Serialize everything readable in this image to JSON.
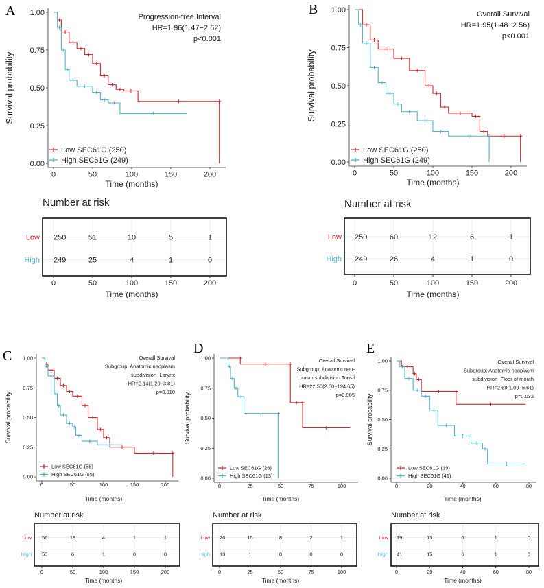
{
  "colors": {
    "low": "#d7262b",
    "high": "#4fb3c9"
  },
  "risk_title": "Number at risk",
  "chart_data": [
    {
      "panel": "A",
      "type": "line",
      "title_lines": [
        "Progression-free Interval",
        "HR=1.96(1.47−2.62)",
        "p<0.001"
      ],
      "xlabel": "Time (months)",
      "ylabel": "Survival probability",
      "xticks": [
        0,
        50,
        100,
        150,
        200
      ],
      "yticks": [
        "0.00",
        "0.25",
        "0.50",
        "0.75",
        "1.00"
      ],
      "xlim": [
        0,
        215
      ],
      "ylim": [
        0,
        1
      ],
      "series": [
        {
          "name": "Low SEC61G (250)",
          "group": "Low",
          "points": [
            [
              0,
              1
            ],
            [
              5,
              0.95
            ],
            [
              10,
              0.87
            ],
            [
              20,
              0.8
            ],
            [
              30,
              0.76
            ],
            [
              40,
              0.72
            ],
            [
              50,
              0.66
            ],
            [
              60,
              0.58
            ],
            [
              70,
              0.52
            ],
            [
              80,
              0.49
            ],
            [
              90,
              0.48
            ],
            [
              108,
              0.41
            ],
            [
              212,
              0.41
            ],
            [
              212,
              0
            ]
          ]
        },
        {
          "name": "High SEC61G (249)",
          "group": "High",
          "points": [
            [
              0,
              1
            ],
            [
              5,
              0.9
            ],
            [
              10,
              0.75
            ],
            [
              15,
              0.62
            ],
            [
              20,
              0.55
            ],
            [
              30,
              0.51
            ],
            [
              50,
              0.47
            ],
            [
              60,
              0.42
            ],
            [
              70,
              0.4
            ],
            [
              85,
              0.33
            ],
            [
              170,
              0.33
            ]
          ]
        }
      ],
      "risk": {
        "times": [
          0,
          50,
          100,
          150,
          200
        ],
        "Low": [
          "250",
          "51",
          "10",
          "5",
          "1"
        ],
        "High": [
          "249",
          "25",
          "4",
          "1",
          "0"
        ]
      }
    },
    {
      "panel": "B",
      "type": "line",
      "title_lines": [
        "Overall Survival",
        "HR=1.95(1.48−2.56)",
        "p<0.001"
      ],
      "xlabel": "Time (months)",
      "ylabel": "Survival probability",
      "xticks": [
        0,
        50,
        100,
        150,
        200
      ],
      "yticks": [
        "0.00",
        "0.25",
        "0.50",
        "0.75",
        "1.00"
      ],
      "xlim": [
        0,
        215
      ],
      "ylim": [
        0,
        1
      ],
      "series": [
        {
          "name": "Low SEC61G (250)",
          "group": "Low",
          "points": [
            [
              0,
              1
            ],
            [
              10,
              0.9
            ],
            [
              20,
              0.8
            ],
            [
              30,
              0.74
            ],
            [
              50,
              0.68
            ],
            [
              70,
              0.6
            ],
            [
              90,
              0.5
            ],
            [
              100,
              0.45
            ],
            [
              110,
              0.36
            ],
            [
              120,
              0.32
            ],
            [
              150,
              0.3
            ],
            [
              160,
              0.2
            ],
            [
              170,
              0.17
            ],
            [
              212,
              0.17
            ],
            [
              212,
              0
            ]
          ]
        },
        {
          "name": "High SEC61G (249)",
          "group": "High",
          "points": [
            [
              0,
              1
            ],
            [
              5,
              0.9
            ],
            [
              10,
              0.78
            ],
            [
              20,
              0.62
            ],
            [
              30,
              0.52
            ],
            [
              40,
              0.45
            ],
            [
              50,
              0.38
            ],
            [
              60,
              0.33
            ],
            [
              80,
              0.27
            ],
            [
              100,
              0.2
            ],
            [
              120,
              0.17
            ],
            [
              172,
              0.17
            ],
            [
              172,
              0
            ]
          ]
        }
      ],
      "risk": {
        "times": [
          0,
          50,
          100,
          150,
          200
        ],
        "Low": [
          "250",
          "60",
          "12",
          "6",
          "1"
        ],
        "High": [
          "249",
          "26",
          "4",
          "1",
          "0"
        ]
      }
    },
    {
      "panel": "C",
      "type": "line",
      "title_lines": [
        "Overall Survival",
        "Subgroup: Anatomic neoplasm",
        "subdivision−Larynx",
        "HR=2.14(1.20−3.81)",
        "p=0.010"
      ],
      "xlabel": "Time (months)",
      "ylabel": "Survival probability",
      "xticks": [
        0,
        50,
        100,
        150,
        200
      ],
      "yticks": [
        "0.00",
        "0.25",
        "0.50",
        "0.75",
        "1.00"
      ],
      "xlim": [
        0,
        215
      ],
      "ylim": [
        0,
        1
      ],
      "series": [
        {
          "name": "Low SEC61G (56)",
          "group": "Low",
          "points": [
            [
              0,
              1
            ],
            [
              5,
              0.95
            ],
            [
              10,
              0.9
            ],
            [
              20,
              0.83
            ],
            [
              30,
              0.77
            ],
            [
              40,
              0.72
            ],
            [
              50,
              0.68
            ],
            [
              65,
              0.6
            ],
            [
              75,
              0.5
            ],
            [
              90,
              0.4
            ],
            [
              100,
              0.33
            ],
            [
              110,
              0.25
            ],
            [
              150,
              0.2
            ],
            [
              212,
              0.2
            ],
            [
              212,
              0
            ]
          ]
        },
        {
          "name": "High SEC61G (55)",
          "group": "High",
          "points": [
            [
              0,
              1
            ],
            [
              5,
              0.93
            ],
            [
              10,
              0.85
            ],
            [
              20,
              0.7
            ],
            [
              25,
              0.6
            ],
            [
              30,
              0.52
            ],
            [
              40,
              0.45
            ],
            [
              50,
              0.42
            ],
            [
              55,
              0.35
            ],
            [
              65,
              0.3
            ],
            [
              90,
              0.27
            ],
            [
              130,
              0.27
            ]
          ]
        }
      ],
      "risk": {
        "times": [
          0,
          50,
          100,
          150,
          200
        ],
        "Low": [
          "56",
          "18",
          "4",
          "1",
          "1"
        ],
        "High": [
          "55",
          "6",
          "1",
          "0",
          "0"
        ]
      }
    },
    {
      "panel": "D",
      "type": "line",
      "title_lines": [
        "Overall Survival",
        "Subgroup: Anatomic neo-",
        "plasm subdivision Tonsil",
        "HR=22.50(2.60−194.65)",
        "p=0.005"
      ],
      "xlabel": "Time (months)",
      "ylabel": "Survival probability",
      "xticks": [
        0,
        25,
        50,
        75,
        100
      ],
      "yticks": [
        "0.00",
        "0.25",
        "0.50",
        "0.75",
        "1.00"
      ],
      "xlim": [
        0,
        110
      ],
      "ylim": [
        0,
        1
      ],
      "series": [
        {
          "name": "Low SEC61G (26)",
          "group": "Low",
          "points": [
            [
              0,
              1
            ],
            [
              17,
              1
            ],
            [
              17,
              0.95
            ],
            [
              58,
              0.95
            ],
            [
              58,
              0.63
            ],
            [
              68,
              0.63
            ],
            [
              68,
              0.42
            ],
            [
              107,
              0.42
            ]
          ]
        },
        {
          "name": "High SEC61G (13)",
          "group": "High",
          "points": [
            [
              0,
              1
            ],
            [
              7,
              0.93
            ],
            [
              9,
              0.83
            ],
            [
              12,
              0.75
            ],
            [
              15,
              0.68
            ],
            [
              20,
              0.54
            ],
            [
              48,
              0.54
            ],
            [
              48,
              0
            ]
          ]
        }
      ],
      "risk": {
        "times": [
          0,
          25,
          50,
          75,
          100
        ],
        "Low": [
          "26",
          "15",
          "8",
          "2",
          "1"
        ],
        "High": [
          "13",
          "1",
          "0",
          "0",
          "0"
        ]
      }
    },
    {
      "panel": "E",
      "type": "line",
      "title_lines": [
        "Overall Survival",
        "Subgroup: Anatomic neoplasm",
        "subdivision−Floor of mouth",
        "HR=2.68(1.09−6.61)",
        "p=0.032"
      ],
      "xlabel": "Time (months)",
      "ylabel": "Survival probability",
      "xticks": [
        0,
        20,
        40,
        60,
        80
      ],
      "yticks": [
        "0.00",
        "0.25",
        "0.50",
        "0.75",
        "1.00"
      ],
      "xlim": [
        0,
        82
      ],
      "ylim": [
        0,
        1
      ],
      "series": [
        {
          "name": "Low SEC61G (19)",
          "group": "Low",
          "points": [
            [
              0,
              1
            ],
            [
              3,
              0.95
            ],
            [
              10,
              0.89
            ],
            [
              12,
              0.84
            ],
            [
              15,
              0.74
            ],
            [
              36,
              0.74
            ],
            [
              36,
              0.63
            ],
            [
              78,
              0.63
            ]
          ]
        },
        {
          "name": "High SEC61G (41)",
          "group": "High",
          "points": [
            [
              0,
              1
            ],
            [
              2,
              0.95
            ],
            [
              5,
              0.85
            ],
            [
              10,
              0.75
            ],
            [
              15,
              0.7
            ],
            [
              20,
              0.58
            ],
            [
              25,
              0.45
            ],
            [
              35,
              0.36
            ],
            [
              45,
              0.3
            ],
            [
              52,
              0.25
            ],
            [
              55,
              0.12
            ],
            [
              78,
              0.12
            ]
          ]
        }
      ],
      "risk": {
        "times": [
          0,
          20,
          40,
          60,
          80
        ],
        "Low": [
          "19",
          "13",
          "6",
          "1",
          "0"
        ],
        "High": [
          "41",
          "15",
          "6",
          "1",
          "0"
        ]
      }
    }
  ]
}
